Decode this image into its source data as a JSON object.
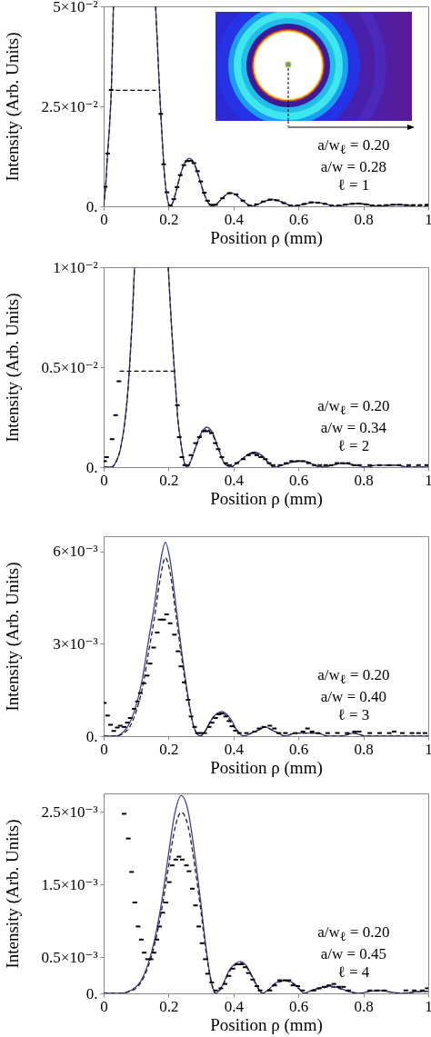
{
  "chart_data": [
    {
      "type": "line",
      "xlabel": "Position ρ (mm)",
      "ylabel": "Intensity (Arb. Units)",
      "xlim": [
        0,
        1
      ],
      "ylim": [
        0,
        0.05
      ],
      "xticks": [
        0,
        0.2,
        0.4,
        0.6,
        0.8,
        1
      ],
      "yticks": [
        {
          "value": 0,
          "label": "0."
        },
        {
          "value": 0.025,
          "label": "2.5×10⁻²"
        },
        {
          "value": 0.05,
          "label": "5×10⁻²"
        }
      ],
      "grid": false,
      "annotations": [
        "a/w$_{ℓ}$ = 0.20",
        "a/w = 0.28",
        "ℓ = 1"
      ],
      "x": [
        0,
        0.006,
        0.012,
        0.018,
        0.024,
        0.03,
        0.09,
        0.16,
        0.166,
        0.171,
        0.176,
        0.181,
        0.186,
        0.19,
        0.195,
        0.205,
        0.214,
        0.224,
        0.234,
        0.244,
        0.254,
        0.264,
        0.274,
        0.284,
        0.294,
        0.304,
        0.314,
        0.324,
        0.334,
        0.348,
        0.362,
        0.377,
        0.392,
        0.405,
        0.42,
        0.438,
        0.456,
        0.475,
        0.5,
        0.521,
        0.542,
        0.565,
        0.586,
        0.615,
        0.652,
        0.685,
        0.715,
        0.745,
        0.78,
        0.815,
        0.845,
        0.88,
        0.91,
        0.945,
        0.975,
        1
      ],
      "series": [
        {
          "color": "#3f3f9f",
          "line_style": "solid",
          "values": [
            0,
            0.005,
            0.013,
            0.02,
            0.03,
            0.05,
            null,
            0.05,
            0.04,
            0.031,
            0.0231,
            0.016,
            0.0095,
            0.0055,
            0.0025,
            0,
            0.0012,
            0.004,
            0.0072,
            0.0098,
            0.0114,
            0.012,
            0.0114,
            0.0097,
            0.0072,
            0.0045,
            0.0022,
            0.0007,
            0,
            0.0006,
            0.0017,
            0.0029,
            0.0034,
            0.003,
            0.002,
            0.0008,
            0,
            0.0005,
            0.0014,
            0.0017,
            0.0013,
            0.0005,
            0,
            0.0005,
            0.001,
            0.0006,
            0,
            0.0004,
            0.0007,
            0.0004,
            0,
            0.0003,
            0.0004,
            0.0002,
            null,
            null
          ]
        },
        {
          "color": "#222222",
          "line_style": "dashed",
          "values": [
            0,
            0.005,
            0.013,
            0.02,
            0.03,
            0.05,
            null,
            0.05,
            0.04,
            0.031,
            0.0231,
            0.016,
            0.0095,
            0.0055,
            0.0025,
            0,
            0.0012,
            0.004,
            0.0072,
            0.0097,
            0.0112,
            0.0117,
            0.0112,
            0.0096,
            0.0071,
            0.0044,
            0.0022,
            0.0007,
            0,
            0.0006,
            0.0017,
            0.0029,
            0.0033,
            0.003,
            0.002,
            0.0008,
            0,
            0.0005,
            0.0014,
            0.0016,
            0.0013,
            0.0005,
            0,
            0.0005,
            0.001,
            0.0006,
            0,
            0.0004,
            0.0007,
            0.0004,
            0,
            0.0003,
            0.0004,
            0.0002,
            0,
            0.0002
          ]
        },
        {
          "color": "#000000",
          "line_style": "dashed",
          "x": [
            0.037,
            0.099,
            0.161
          ],
          "values": [
            0.029,
            0.029,
            0.029
          ]
        },
        {
          "type": "scatter",
          "color": "#000000",
          "x": [
            0.005,
            0.012,
            0.023,
            0.176,
            0.185,
            0.195,
            0.205,
            0.216,
            0.226,
            0.236,
            0.247,
            0.257,
            0.268,
            0.278,
            0.289,
            0.299,
            0.31,
            0.32,
            0.331,
            0.345,
            0.366,
            0.387,
            0.408,
            0.429,
            0.45,
            0.471,
            0.492,
            0.513,
            0.534,
            0.555,
            0.576,
            0.597,
            0.618,
            0.639,
            0.66,
            0.681,
            0.702,
            0.723,
            0.744,
            0.765,
            0.786,
            0.807,
            0.828,
            0.849,
            0.87,
            0.891,
            0.912,
            0.933,
            0.954,
            0.975,
            0.996
          ],
          "values": [
            0.0049,
            0.0132,
            0.0291,
            0.0231,
            0.0105,
            0.0035,
            0.0002,
            0.0018,
            0.0048,
            0.0078,
            0.0103,
            0.0113,
            0.0114,
            0.0108,
            0.0088,
            0.0062,
            0.0034,
            0.0014,
            0.0004,
            0.0004,
            0.002,
            0.0033,
            0.003,
            0.0014,
            0.0002,
            0.0005,
            0.0012,
            0.0017,
            0.0015,
            0.0008,
            0.0002,
            0.0002,
            0.0006,
            0.001,
            0.0009,
            0.0006,
            0.0002,
            0.0002,
            0.0004,
            0.0006,
            0.0007,
            0.0005,
            0.0002,
            0.0002,
            0.0003,
            0.0004,
            0.0004,
            0.0003,
            0.0003,
            0.0003,
            0.0004
          ]
        }
      ]
    },
    {
      "type": "line",
      "xlabel": "Position ρ (mm)",
      "ylabel": "Intensity (Arb. Units)",
      "xlim": [
        0,
        1
      ],
      "ylim": [
        0,
        0.01
      ],
      "xticks": [
        0,
        0.2,
        0.4,
        0.6,
        0.8,
        1
      ],
      "yticks": [
        {
          "value": 0,
          "label": "0."
        },
        {
          "value": 0.005,
          "label": "0.5×10⁻²"
        },
        {
          "value": 0.01,
          "label": "1×10⁻²"
        }
      ],
      "grid": false,
      "annotations": [
        "a/w$_{ℓ}$ = 0.20",
        "a/w = 0.34",
        "ℓ = 2"
      ],
      "x": [
        0,
        0.023,
        0.036,
        0.05,
        0.063,
        0.072,
        0.079,
        0.088,
        0.095,
        0.15,
        0.199,
        0.205,
        0.21,
        0.216,
        0.222,
        0.228,
        0.239,
        0.249,
        0.258,
        0.268,
        0.279,
        0.297,
        0.318,
        0.336,
        0.354,
        0.372,
        0.392,
        0.41,
        0.426,
        0.442,
        0.453,
        0.464,
        0.477,
        0.493,
        0.508,
        0.526,
        0.55,
        0.58,
        0.605,
        0.63,
        0.65,
        0.668,
        0.705,
        0.736,
        0.775,
        0.81,
        0.84,
        0.87,
        0.9,
        0.94,
        1
      ],
      "series": [
        {
          "color": "#3f3f9f",
          "line_style": "solid",
          "values": [
            0,
            0,
            0.0002,
            0.0008,
            0.002,
            0.0033,
            0.0048,
            0.0074,
            0.01,
            null,
            0.01,
            0.0082,
            0.0068,
            0.0053,
            0.0039,
            0.0025,
            0.0011,
            0.0002,
            0,
            0.0003,
            0.0008,
            0.0016,
            0.002,
            0.0017,
            0.0009,
            0.0002,
            0,
            0.0002,
            0.0004,
            0.0006,
            0.0007,
            0.00076,
            0.0007,
            0.0005,
            0.0002,
            0,
            0.0001,
            0.00025,
            0.0003,
            0.00025,
            0.0001,
            0,
            0.0001,
            0.0002,
            0.0001,
            0,
            0.0001,
            0.0001,
            0.0001,
            0,
            0
          ]
        },
        {
          "color": "#222222",
          "line_style": "dashed",
          "values": [
            0,
            0,
            0.0002,
            0.0008,
            0.002,
            0.0033,
            0.0048,
            0.0074,
            0.01,
            null,
            0.01,
            0.0082,
            0.0068,
            0.0053,
            0.0039,
            0.0025,
            0.0011,
            0.0002,
            0,
            0.0003,
            0.0008,
            0.0015,
            0.0019,
            0.0016,
            0.0009,
            0.0002,
            0,
            0.0002,
            0.0004,
            0.0006,
            0.0007,
            0.0007,
            0.00065,
            0.0005,
            0.0002,
            0,
            0.0001,
            0.00025,
            0.0003,
            0.00025,
            0.0001,
            0,
            0.0001,
            0.0002,
            0.0001,
            0,
            0.0001,
            0.0001,
            0.0001,
            0,
            0
          ]
        },
        {
          "color": "#000000",
          "line_style": "dashed",
          "x": [
            0.049,
            0.134,
            0.22
          ],
          "values": [
            0.0048,
            0.0048,
            0.0048
          ]
        },
        {
          "type": "scatter",
          "color": "#000000",
          "x": [
            0.003,
            0.009,
            0.026,
            0.037,
            0.047,
            0.227,
            0.233,
            0.241,
            0.25,
            0.258,
            0.269,
            0.283,
            0.295,
            0.308,
            0.32,
            0.332,
            0.344,
            0.353,
            0.364,
            0.376,
            0.388,
            0.41,
            0.43,
            0.446,
            0.46,
            0.472,
            0.484,
            0.498,
            0.51,
            0.522,
            0.544,
            0.562,
            0.579,
            0.597,
            0.614,
            0.631,
            0.649,
            0.666,
            0.684,
            0.701,
            0.719,
            0.736,
            0.753,
            0.771,
            0.788,
            0.82,
            0.85,
            0.88,
            0.91,
            0.94,
            0.97,
            0.995
          ],
          "values": [
            0.0003,
            0.0005,
            0.0014,
            0.0026,
            0.0043,
            0.0031,
            0.0015,
            0.0005,
            0.0001,
            0.0001,
            0.0006,
            0.0012,
            0.0015,
            0.0018,
            0.0018,
            0.0017,
            0.0012,
            0.0009,
            0.0005,
            0.0002,
            0.0001,
            0.0002,
            0.0004,
            0.0006,
            0.0007,
            0.0006,
            0.0005,
            0.0004,
            0.0002,
            0.0001,
            0.0001,
            0.0002,
            0.0003,
            0.0003,
            0.0003,
            0.0002,
            0.0001,
            0.0001,
            0.0001,
            0.0001,
            0.0002,
            0.0002,
            0.0002,
            0.0001,
            0.0001,
            0.0001,
            0.0001,
            0.0001,
            0.0001,
            0.0001,
            0.0001,
            0.0001
          ]
        }
      ]
    },
    {
      "type": "line",
      "xlabel": "Position ρ (mm)",
      "ylabel": "Intensity (Arb. Units)",
      "xlim": [
        0,
        1
      ],
      "ylim": [
        0,
        0.0065
      ],
      "xticks": [
        0,
        0.2,
        0.4,
        0.6,
        0.8,
        1
      ],
      "yticks": [
        {
          "value": 0,
          "label": "0."
        },
        {
          "value": 0.003,
          "label": "3×10⁻³"
        },
        {
          "value": 0.006,
          "label": "6×10⁻³"
        }
      ],
      "grid": false,
      "annotations": [
        "a/w$_{ℓ}$ = 0.20",
        "a/w = 0.40",
        "ℓ = 3"
      ],
      "x": [
        0,
        0.035,
        0.073,
        0.1,
        0.12,
        0.138,
        0.157,
        0.174,
        0.19,
        0.205,
        0.222,
        0.241,
        0.26,
        0.278,
        0.297,
        0.315,
        0.33,
        0.345,
        0.364,
        0.38,
        0.395,
        0.41,
        0.432,
        0.455,
        0.477,
        0.498,
        0.518,
        0.538,
        0.558,
        0.59,
        0.628,
        0.66,
        0.69,
        0.73,
        0.77,
        0.81,
        0.85,
        0.9,
        0.95,
        1
      ],
      "series": [
        {
          "color": "#3f3f9f",
          "line_style": "solid",
          "values": [
            0,
            0,
            0.0003,
            0.001,
            0.0019,
            0.0031,
            0.0043,
            0.0056,
            0.0063,
            0.0057,
            0.0043,
            0.0027,
            0.0013,
            0.0003,
            0,
            0.0002,
            0.0005,
            0.0007,
            0.0008,
            0.0007,
            0.0005,
            0.0002,
            0,
            0.0001,
            0.0002,
            0.0003,
            0.0002,
            0.0001,
            0,
            0.0001,
            0.0001,
            0.0001,
            0,
            0,
            0.0001,
            0,
            0,
            0,
            0,
            0
          ]
        },
        {
          "color": "#222222",
          "line_style": "dashed",
          "values": [
            0,
            0,
            0.0002,
            0.0008,
            0.0016,
            0.0027,
            0.0039,
            0.0051,
            0.0058,
            0.0053,
            0.004,
            0.0025,
            0.0012,
            0.0003,
            0,
            0.0002,
            0.0005,
            0.0007,
            0.00075,
            0.00065,
            0.0004,
            0.0002,
            0,
            0.0001,
            0.0002,
            0.0003,
            0.0002,
            0.0001,
            0,
            0.0001,
            0.0001,
            0.0001,
            0,
            0,
            0.0001,
            0,
            0,
            0,
            0,
            0
          ]
        },
        {
          "type": "scatter",
          "color": "#000000",
          "x": [
            0.002,
            0.012,
            0.021,
            0.031,
            0.042,
            0.051,
            0.063,
            0.073,
            0.082,
            0.094,
            0.104,
            0.113,
            0.124,
            0.134,
            0.143,
            0.154,
            0.165,
            0.174,
            0.185,
            0.194,
            0.205,
            0.218,
            0.229,
            0.238,
            0.248,
            0.26,
            0.269,
            0.28,
            0.289,
            0.3,
            0.311,
            0.325,
            0.334,
            0.345,
            0.355,
            0.364,
            0.376,
            0.386,
            0.395,
            0.406,
            0.418,
            0.44,
            0.465,
            0.479,
            0.493,
            0.512,
            0.526,
            0.54,
            0.56,
            0.59,
            0.614,
            0.628,
            0.642,
            0.66,
            0.69,
            0.72,
            0.75,
            0.773,
            0.787,
            0.82,
            0.85,
            0.88,
            0.895,
            0.92,
            0.95,
            0.97,
            0.99
          ],
          "values": [
            0.00108,
            0.00067,
            0.00037,
            0.00017,
            0.00028,
            0.00034,
            0.0003,
            0.00044,
            0.00059,
            0.00089,
            0.00113,
            0.0014,
            0.00172,
            0.00197,
            0.00236,
            0.00288,
            0.00337,
            0.00379,
            0.00379,
            0.00396,
            0.00367,
            0.0033,
            0.00276,
            0.00227,
            0.00175,
            0.00118,
            0.00064,
            0.0003,
            0.0001,
            0.0001,
            0.0001,
            0.0003,
            0.00044,
            0.00059,
            0.00071,
            0.00074,
            0.00064,
            0.00049,
            0.00032,
            0.00018,
            0.0001,
            0.0001,
            0.00015,
            0.00025,
            0.0003,
            0.00034,
            0.00025,
            0.0001,
            0.0001,
            0.0001,
            0.00015,
            0.00025,
            0.00015,
            0.0001,
            0.0001,
            0.0001,
            0.0001,
            0.00015,
            0.00015,
            0.0001,
            0.0001,
            0.0001,
            0.00015,
            0.0001,
            0.0001,
            0.0001,
            0.0001
          ]
        }
      ]
    },
    {
      "type": "line",
      "xlabel": "Position ρ (mm)",
      "ylabel": "Intensity (Arb. Units)",
      "xlim": [
        0,
        1
      ],
      "ylim": [
        0,
        0.00275
      ],
      "xticks": [
        0,
        0.2,
        0.4,
        0.6,
        0.8,
        1
      ],
      "yticks": [
        {
          "value": 0,
          "label": "0."
        },
        {
          "value": 0.0005,
          "label": "0.5×10⁻³"
        },
        {
          "value": 0.0015,
          "label": "1.5×10⁻³"
        },
        {
          "value": 0.0025,
          "label": "2.5×10⁻³"
        }
      ],
      "grid": false,
      "annotations": [
        "a/w$_{ℓ}$ = 0.20",
        "a/w = 0.45",
        "ℓ = 4"
      ],
      "x": [
        0,
        0.05,
        0.083,
        0.113,
        0.138,
        0.159,
        0.179,
        0.199,
        0.219,
        0.239,
        0.26,
        0.28,
        0.3,
        0.315,
        0.33,
        0.345,
        0.366,
        0.386,
        0.406,
        0.421,
        0.436,
        0.457,
        0.472,
        0.489,
        0.512,
        0.532,
        0.56,
        0.585,
        0.6,
        0.618,
        0.64,
        0.67,
        0.699,
        0.73,
        0.76,
        0.79,
        0.82,
        0.85,
        0.88,
        0.92,
        0.96,
        1
      ],
      "series": [
        {
          "color": "#3f3f9f",
          "line_style": "solid",
          "values": [
            0,
            0,
            4e-05,
            0.00016,
            0.00042,
            0.00078,
            0.00127,
            0.00189,
            0.00247,
            0.00272,
            0.00251,
            0.00193,
            0.00122,
            0.00064,
            0.0002,
            0,
            0.00011,
            0.00031,
            0.00041,
            0.00044,
            0.0004,
            0.00024,
            0.00011,
            0,
            7e-05,
            0.00015,
            0.00018,
            0.00014,
            8e-05,
            0,
            4e-05,
            8e-05,
            0.0001,
            7e-05,
            2e-05,
            0,
            3e-05,
            4e-05,
            2e-05,
            0,
            2e-05,
            3e-05
          ]
        },
        {
          "color": "#222222",
          "line_style": "dashed",
          "values": [
            0,
            0,
            3e-05,
            0.00014,
            0.00038,
            0.00071,
            0.00116,
            0.00172,
            0.00226,
            0.00249,
            0.0023,
            0.00177,
            0.00112,
            0.00059,
            0.00018,
            0,
            0.0001,
            0.00029,
            0.00039,
            0.00042,
            0.00038,
            0.00023,
            0.0001,
            0,
            6e-05,
            0.00014,
            0.00017,
            0.00013,
            7e-05,
            0,
            4e-05,
            7e-05,
            9e-05,
            6e-05,
            2e-05,
            0,
            3e-05,
            4e-05,
            2e-05,
            0,
            2e-05,
            3e-05
          ]
        },
        {
          "type": "scatter",
          "color": "#000000",
          "x": [
            0.063,
            0.076,
            0.086,
            0.096,
            0.106,
            0.116,
            0.125,
            0.135,
            0.146,
            0.155,
            0.164,
            0.172,
            0.182,
            0.192,
            0.202,
            0.211,
            0.222,
            0.232,
            0.242,
            0.255,
            0.263,
            0.273,
            0.283,
            0.293,
            0.303,
            0.313,
            0.32,
            0.333,
            0.345,
            0.361,
            0.374,
            0.386,
            0.398,
            0.411,
            0.424,
            0.436,
            0.446,
            0.459,
            0.472,
            0.482,
            0.512,
            0.527,
            0.542,
            0.558,
            0.571,
            0.583,
            0.598,
            0.613,
            0.648,
            0.664,
            0.679,
            0.694,
            0.709,
            0.724,
            0.739,
            0.755,
            0.82,
            0.843,
            0.866,
            0.931,
            0.957,
            0.982,
            0.997
          ],
          "values": [
            0.00247,
            0.00213,
            0.00167,
            0.00125,
            0.00092,
            0.00074,
            0.00056,
            0.00047,
            0.00047,
            0.00056,
            0.00074,
            0.00092,
            0.00111,
            0.00125,
            0.00153,
            0.00176,
            0.00184,
            0.00188,
            0.00184,
            0.00176,
            0.00168,
            0.00144,
            0.00121,
            0.00092,
            0.00069,
            0.00047,
            0.00027,
            0.00015,
            4e-05,
            7e-05,
            0.00013,
            0.00024,
            0.00034,
            0.0004,
            0.0004,
            0.00036,
            0.00028,
            0.00019,
            0.0001,
            4e-05,
            4e-05,
            0.00011,
            0.00018,
            0.00018,
            0.00018,
            0.00011,
            0.0001,
            4e-05,
            4e-05,
            7e-05,
            9e-05,
            0.00011,
            0.00013,
            9e-05,
            9e-05,
            4e-05,
            4e-05,
            4e-05,
            4e-05,
            4e-05,
            4e-05,
            4e-05,
            7e-05
          ]
        }
      ]
    }
  ]
}
